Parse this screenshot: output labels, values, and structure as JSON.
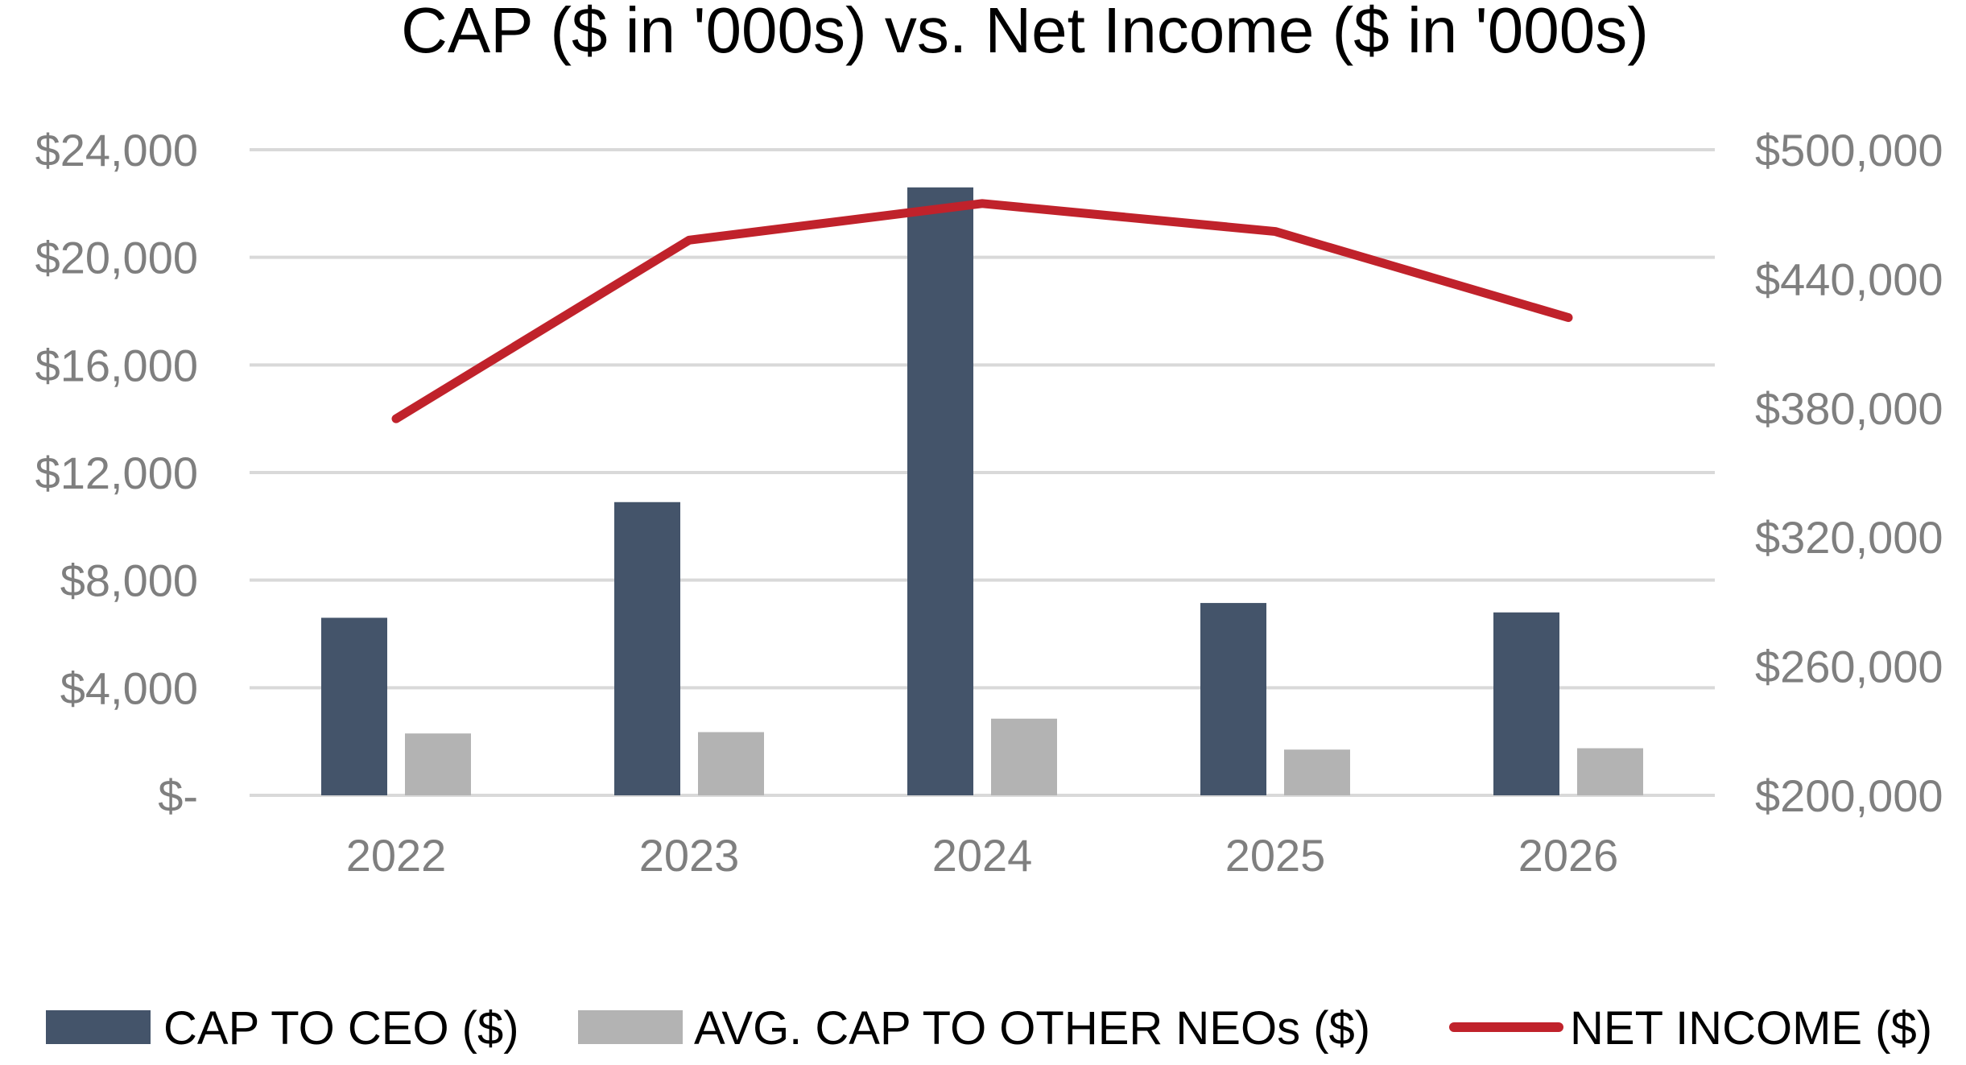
{
  "chart_data": {
    "type": "bar",
    "title": "CAP ($ in '000s) vs. Net Income ($ in '000s)",
    "categories": [
      "2022",
      "2023",
      "2024",
      "2025",
      "2026"
    ],
    "series": [
      {
        "name": "CAP TO CEO ($)",
        "type": "bar",
        "axis": "left",
        "color": "#44546a",
        "values": [
          6600,
          10900,
          22600,
          7150,
          6800
        ]
      },
      {
        "name": "AVG. CAP TO OTHER NEOs ($)",
        "type": "bar",
        "axis": "left",
        "color": "#b3b3b3",
        "values": [
          2300,
          2350,
          2850,
          1700,
          1750
        ]
      },
      {
        "name": "NET INCOME ($)",
        "type": "line",
        "axis": "right",
        "color": "#c0222b",
        "values": [
          375000,
          458000,
          475000,
          462000,
          422000
        ]
      }
    ],
    "y_left": {
      "ylim": [
        0,
        24000
      ],
      "ticks": [
        0,
        4000,
        8000,
        12000,
        16000,
        20000,
        24000
      ],
      "tick_labels": [
        "$-",
        "$4,000",
        "$8,000",
        "$12,000",
        "$16,000",
        "$20,000",
        "$24,000"
      ]
    },
    "y_right": {
      "ylim": [
        200000,
        500000
      ],
      "ticks": [
        200000,
        260000,
        320000,
        380000,
        440000,
        500000
      ],
      "tick_labels": [
        "$200,000",
        "$260,000",
        "$320,000",
        "$380,000",
        "$440,000",
        "$500,000"
      ]
    },
    "grid": true,
    "legend_position": "bottom",
    "colors": {
      "gridline": "#d9d9d9",
      "tick_text": "#7f7f7f",
      "title_text": "#000000",
      "legend_text": "#000000"
    }
  }
}
